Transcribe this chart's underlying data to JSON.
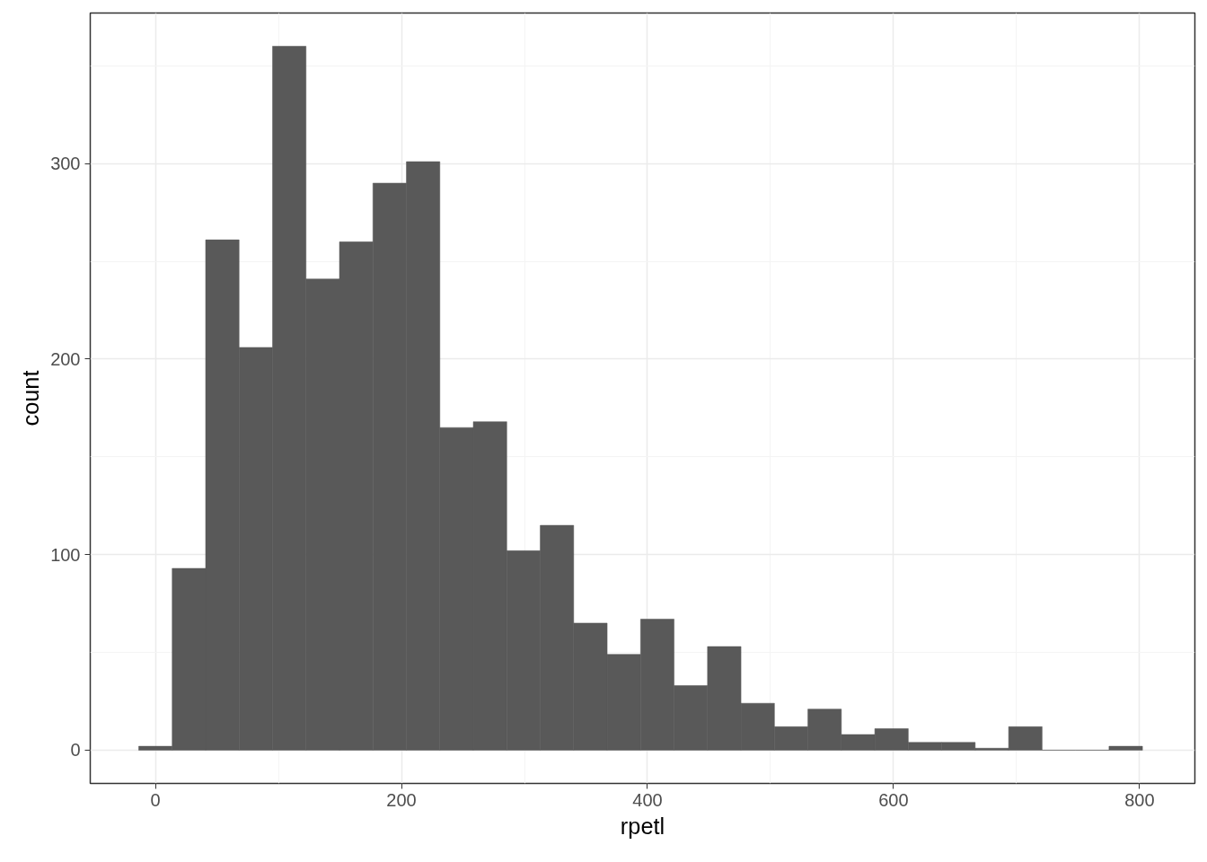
{
  "chart_data": {
    "type": "histogram",
    "xlabel": "rpetl",
    "ylabel": "count",
    "bins": [
      -13.6,
      13.6,
      40.8,
      68.0,
      95.2,
      122.4,
      149.6,
      176.8,
      204.0,
      231.2,
      258.4,
      285.6,
      312.8,
      340.0,
      367.2,
      394.4,
      421.6,
      448.8,
      476.0,
      503.2,
      530.4,
      557.6,
      584.8,
      612.0,
      639.2,
      666.4,
      693.6,
      720.8,
      748.0,
      775.2,
      802.4
    ],
    "values": [
      2,
      93,
      261,
      206,
      360,
      241,
      260,
      290,
      301,
      165,
      168,
      102,
      115,
      65,
      49,
      67,
      33,
      53,
      24,
      12,
      21,
      8,
      11,
      4,
      4,
      1,
      12,
      0,
      0,
      2
    ],
    "color": "#595959",
    "xlim": [
      -53,
      845
    ],
    "ylim": [
      -17,
      377
    ],
    "xticks": [
      0,
      200,
      400,
      600,
      800
    ],
    "yticks": [
      0,
      100,
      200,
      300
    ],
    "grid": true
  }
}
